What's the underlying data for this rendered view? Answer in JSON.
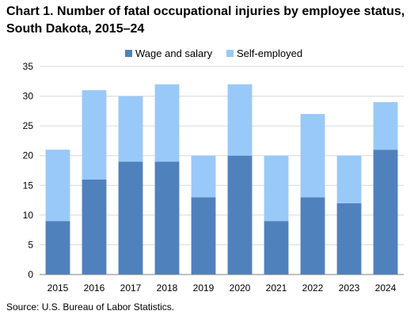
{
  "title": "Chart 1. Number of fatal occupational injuries by employee status, South Dakota, 2015–24",
  "source": "Source: U.S. Bureau of Labor Statistics.",
  "colors": {
    "wage": "#4f81bd",
    "self": "#99c9f8",
    "grid": "#d9d9d9",
    "axis": "#808080"
  },
  "chart_data": {
    "type": "bar",
    "stacked": true,
    "title": "Chart 1. Number of fatal occupational injuries by employee status, South Dakota, 2015–24",
    "xlabel": "",
    "ylabel": "",
    "ylim": [
      0,
      35
    ],
    "yticks": [
      0,
      5,
      10,
      15,
      20,
      25,
      30,
      35
    ],
    "grid": true,
    "legend": "top",
    "categories": [
      "2015",
      "2016",
      "2017",
      "2018",
      "2019",
      "2020",
      "2021",
      "2022",
      "2023",
      "2024"
    ],
    "series": [
      {
        "name": "Wage and salary",
        "values": [
          9,
          16,
          19,
          19,
          13,
          20,
          9,
          13,
          12,
          21
        ]
      },
      {
        "name": "Self-employed",
        "values": [
          12,
          15,
          11,
          13,
          7,
          12,
          11,
          14,
          8,
          8
        ]
      }
    ]
  }
}
